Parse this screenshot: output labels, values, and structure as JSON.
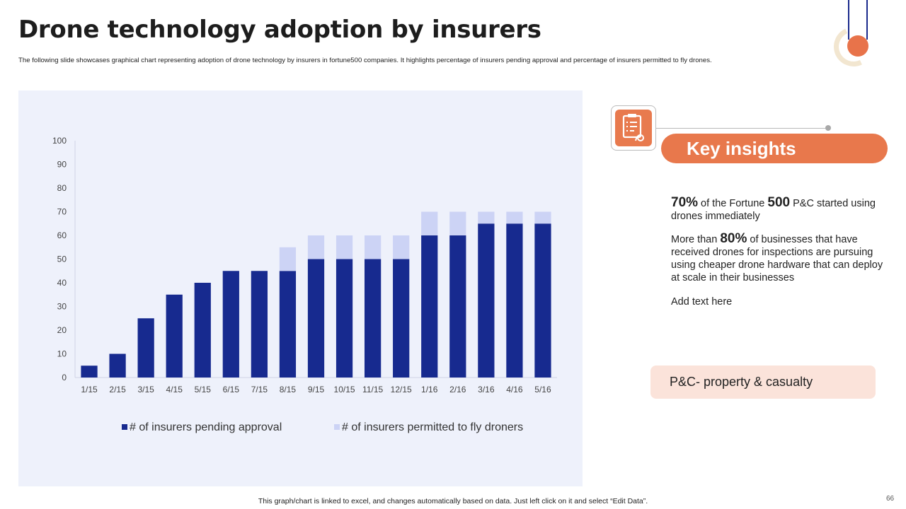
{
  "slide": {
    "title": "Drone technology adoption by insurers",
    "subtitle": "The following slide showcases graphical chart representing adoption of drone technology by insurers in fortune500 companies. It highlights percentage of insurers pending approval and percentage of insurers permitted to fly drones.",
    "footer": "This graph/chart is linked to excel,  and changes automatically based on data. Just left click on it and select “Edit Data”.",
    "page_number": "66"
  },
  "colors": {
    "pending": "#172a8f",
    "permitted": "#ccd3f5",
    "accent": "#e8784c",
    "panel_bg": "#eef1fb"
  },
  "insights": {
    "icon": "checklist-icon",
    "heading": "Key insights",
    "p1": {
      "big1": "70%",
      "t1": " of the Fortune ",
      "big2": "500",
      "t2": " P&C started using drones immediately"
    },
    "p2": {
      "t1": "More than ",
      "big1": "80%",
      "t2": " of businesses that have received drones for inspections are pursuing using cheaper drone hardware that can deploy at scale in their businesses"
    },
    "p3": "Add text here",
    "note": "P&C- property & casualty"
  },
  "chart_data": {
    "type": "bar",
    "stacked": true,
    "categories": [
      "1/15",
      "2/15",
      "3/15",
      "4/15",
      "5/15",
      "6/15",
      "7/15",
      "8/15",
      "9/15",
      "10/15",
      "11/15",
      "12/15",
      "1/16",
      "2/16",
      "3/16",
      "4/16",
      "5/16"
    ],
    "series": [
      {
        "name": "# of insurers pending approval",
        "values": [
          5,
          10,
          25,
          35,
          40,
          45,
          45,
          45,
          50,
          50,
          50,
          50,
          60,
          60,
          65,
          65,
          65
        ]
      },
      {
        "name": "# of insurers permitted to fly droners",
        "values": [
          0,
          0,
          0,
          0,
          0,
          0,
          0,
          10,
          10,
          10,
          10,
          10,
          10,
          10,
          5,
          5,
          5
        ]
      }
    ],
    "yticks": [
      "0",
      "10",
      "20",
      "30",
      "40",
      "50",
      "60",
      "70",
      "80",
      "90",
      "100"
    ],
    "ylim": [
      0,
      100
    ],
    "grid": false,
    "legend_position": "bottom",
    "title": "",
    "xlabel": "",
    "ylabel": ""
  }
}
